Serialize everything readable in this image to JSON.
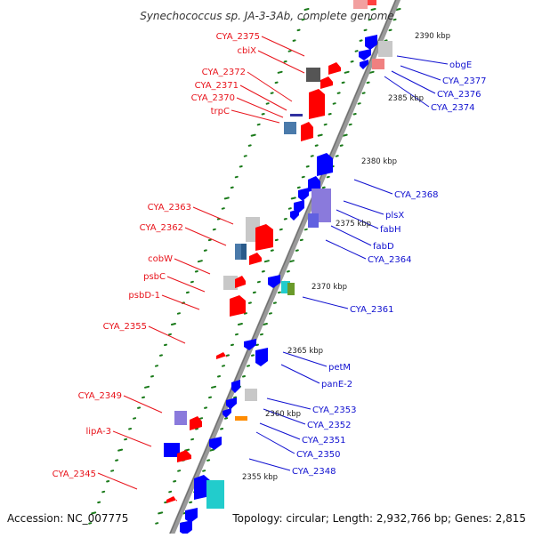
{
  "title": "Synechococcus sp. JA-3-3Ab, complete genome",
  "footer": {
    "accession": "Accession: NC_007775",
    "summary": "Topology: circular; Length: 2,932,766 bp; Genes: 2,815"
  },
  "colors": {
    "forward_label": "#e8131b",
    "reverse_label": "#1010d0",
    "forward_gene": "#ff0000",
    "reverse_gene": "#0000ff",
    "rna_gene": "#c0c0c0",
    "tick": "#1a7a1a",
    "backbone": "#8a8a8a"
  },
  "kbp_markers": [
    "2390 kbp",
    "2385 kbp",
    "2380 kbp",
    "2375 kbp",
    "2370 kbp",
    "2365 kbp",
    "2360 kbp",
    "2355 kbp"
  ],
  "left_labels": [
    "CYA_2375",
    "cbiX",
    "CYA_2372",
    "CYA_2371",
    "CYA_2370",
    "trpC",
    "CYA_2363",
    "CYA_2362",
    "cobW",
    "psbC",
    "psbD-1",
    "CYA_2355",
    "CYA_2349",
    "lipA-3",
    "CYA_2345"
  ],
  "right_labels": [
    "obgE",
    "CYA_2377",
    "CYA_2376",
    "CYA_2374",
    "CYA_2368",
    "plsX",
    "fabH",
    "fabD",
    "CYA_2364",
    "CYA_2361",
    "petM",
    "panE-2",
    "CYA_2353",
    "CYA_2352",
    "CYA_2351",
    "CYA_2350",
    "CYA_2348"
  ]
}
